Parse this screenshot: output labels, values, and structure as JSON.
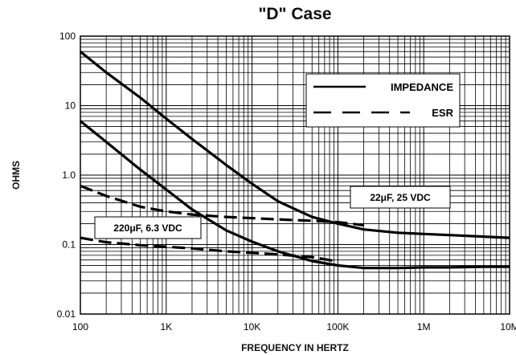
{
  "chart_data": {
    "type": "line",
    "title": "\"D\" Case",
    "xlabel": "FREQUENCY IN HERTZ",
    "ylabel": "OHMS",
    "x_scale": "log",
    "y_scale": "log",
    "xlim": [
      100,
      10000000
    ],
    "ylim": [
      0.01,
      100
    ],
    "x_ticks": [
      {
        "value": 100,
        "label": "100"
      },
      {
        "value": 1000,
        "label": "1K"
      },
      {
        "value": 10000,
        "label": "10K"
      },
      {
        "value": 100000,
        "label": "100K"
      },
      {
        "value": 1000000,
        "label": "1M"
      },
      {
        "value": 10000000,
        "label": "10M"
      }
    ],
    "y_ticks": [
      {
        "value": 0.01,
        "label": "0.01"
      },
      {
        "value": 0.1,
        "label": "0.1"
      },
      {
        "value": 1,
        "label": "1.0"
      },
      {
        "value": 10,
        "label": "10"
      },
      {
        "value": 100,
        "label": "100"
      }
    ],
    "grid": true,
    "legend_position": "top-right",
    "legend": [
      {
        "label": "IMPEDANCE",
        "style": "solid"
      },
      {
        "label": "ESR",
        "style": "dashed"
      }
    ],
    "annotations": [
      {
        "text": "22μF, 25 VDC"
      },
      {
        "text": "220μF, 6.3 VDC"
      }
    ],
    "series": [
      {
        "style": "solid",
        "x": [
          100,
          200,
          500,
          1000,
          2000,
          5000,
          10000,
          20000,
          50000,
          100000,
          200000,
          500000,
          1000000,
          2000000,
          5000000,
          10000000
        ],
        "y": [
          60,
          30,
          13,
          6.5,
          3.3,
          1.4,
          0.75,
          0.42,
          0.25,
          0.2,
          0.165,
          0.148,
          0.142,
          0.137,
          0.13,
          0.125
        ]
      },
      {
        "style": "solid",
        "x": [
          100,
          200,
          500,
          1000,
          2000,
          5000,
          10000,
          20000,
          50000,
          100000,
          200000,
          500000,
          1000000,
          2000000,
          5000000,
          10000000
        ],
        "y": [
          6,
          3,
          1.2,
          0.62,
          0.32,
          0.16,
          0.11,
          0.08,
          0.058,
          0.05,
          0.046,
          0.046,
          0.047,
          0.047,
          0.048,
          0.048
        ]
      },
      {
        "style": "dashed",
        "x": [
          100,
          200,
          500,
          1000,
          2000,
          5000,
          10000,
          20000,
          50000,
          100000,
          200000
        ],
        "y": [
          0.7,
          0.5,
          0.35,
          0.3,
          0.27,
          0.25,
          0.24,
          0.23,
          0.22,
          0.21,
          0.19
        ]
      },
      {
        "style": "dashed",
        "x": [
          100,
          200,
          500,
          1000,
          2000,
          5000,
          10000,
          20000,
          50000,
          100000
        ],
        "y": [
          0.125,
          0.108,
          0.098,
          0.093,
          0.088,
          0.08,
          0.076,
          0.072,
          0.066,
          0.057
        ]
      }
    ]
  }
}
